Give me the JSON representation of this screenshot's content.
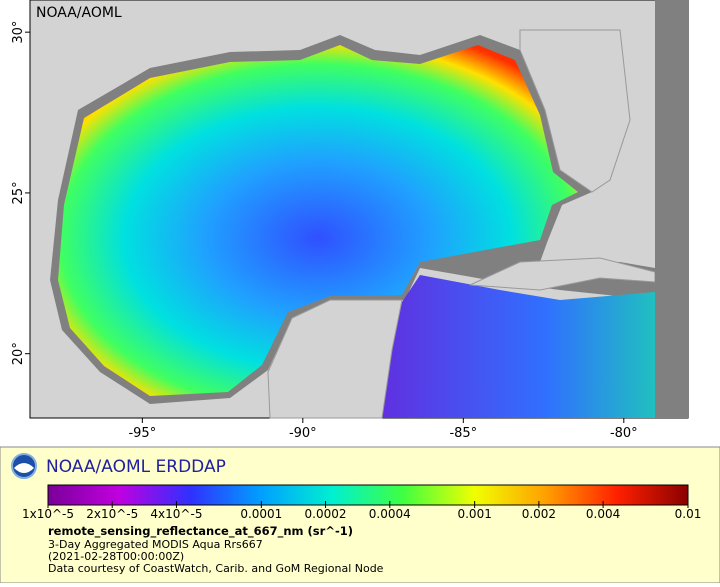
{
  "map": {
    "watermark": "NOAA/AOML",
    "xlim": [
      -98.5,
      -78
    ],
    "ylim": [
      18,
      31
    ],
    "xticks": [
      {
        "value": -95,
        "label": "-95°"
      },
      {
        "value": -90,
        "label": "-90°"
      },
      {
        "value": -85,
        "label": "-85°"
      },
      {
        "value": -80,
        "label": "-80°"
      }
    ],
    "yticks": [
      {
        "value": 20,
        "label": "20°"
      },
      {
        "value": 25,
        "label": "25°"
      },
      {
        "value": 30,
        "label": "30°"
      }
    ]
  },
  "legend": {
    "title": "NOAA/AOML ERDDAP",
    "colorbar": {
      "scale": "log",
      "clim": [
        1e-05,
        0.01
      ],
      "colors": [
        "#7a0098",
        "#c000e0",
        "#3030ff",
        "#00a0ff",
        "#00f0d0",
        "#40ff40",
        "#f0ff00",
        "#ffa000",
        "#ff2000",
        "#8a0000"
      ],
      "ticks": [
        {
          "value": 1e-05,
          "label": "1x10^-5"
        },
        {
          "value": 2e-05,
          "label": "2x10^-5"
        },
        {
          "value": 4e-05,
          "label": "4x10^-5"
        },
        0.0001,
        0.0002,
        0.0004,
        0.001,
        0.002,
        0.004,
        0.01
      ]
    },
    "variable": "remote_sensing_reflectance_at_667_nm (sr^-1)",
    "lines": [
      "3-Day Aggregated MODIS Aqua Rrs667",
      "(2021-02-28T00:00:00Z)",
      "Data courtesy of CoastWatch, Carib. and GoM Regional Node"
    ]
  }
}
